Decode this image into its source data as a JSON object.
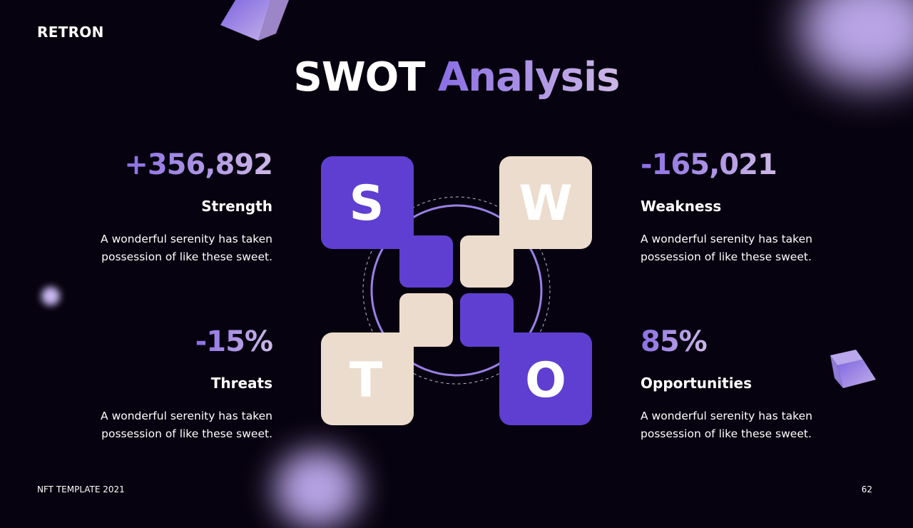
{
  "brand": "RETRON",
  "title": {
    "part1": "SWOT",
    "part2": "Analysis"
  },
  "items": [
    {
      "letter": "S",
      "value": "+356,892",
      "label": "Strength",
      "description_line1": "A wonderful serenity has taken",
      "description_line2": "possession of like these sweet.",
      "color": "#5f3fd1"
    },
    {
      "letter": "W",
      "value": "-165,021",
      "label": "Weakness",
      "description_line1": "A wonderful serenity has taken",
      "description_line2": "possession of like these sweet.",
      "color": "#ecdccd"
    },
    {
      "letter": "T",
      "value": "-15%",
      "label": "Threats",
      "description_line1": "A wonderful serenity has taken",
      "description_line2": "possession of like these sweet.",
      "color": "#ecdccd"
    },
    {
      "letter": "O",
      "value": "85%",
      "label": "Opportunities",
      "description_line1": "A wonderful serenity has taken",
      "description_line2": "possession of like these sweet.",
      "color": "#5f3fd1"
    }
  ],
  "footer": {
    "left": "NFT TEMPLATE 2021",
    "page": "62"
  }
}
